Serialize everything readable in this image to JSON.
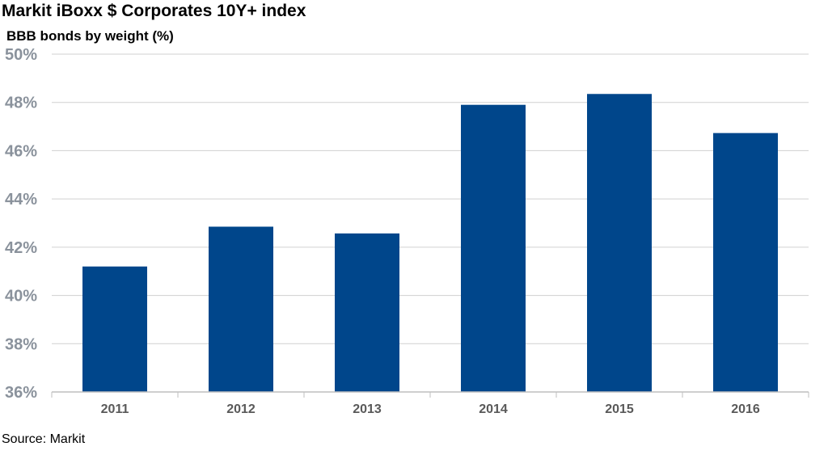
{
  "chart_data": {
    "type": "bar",
    "title": "Markit iBoxx $ Corporates 10Y+ index",
    "subtitle": "BBB bonds by weight (%)",
    "xlabel": "",
    "ylabel": "",
    "categories": [
      "2011",
      "2012",
      "2013",
      "2014",
      "2015",
      "2016"
    ],
    "values": [
      41.2,
      42.85,
      42.57,
      47.9,
      48.35,
      46.73
    ],
    "ylim": [
      36,
      50
    ],
    "yticks": [
      36,
      38,
      40,
      42,
      44,
      46,
      48,
      50
    ],
    "ytick_format": "%",
    "grid": true,
    "legend": "none",
    "bar_color": "#00468b",
    "source": "Source: Markit"
  }
}
